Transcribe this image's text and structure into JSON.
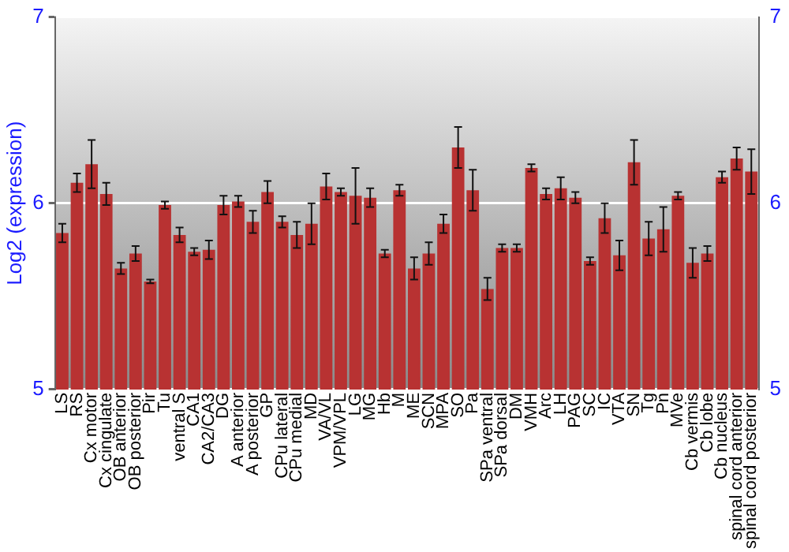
{
  "chart_data": {
    "type": "bar",
    "ylabel": "Log2 (expression)",
    "categories": [
      "LS",
      "RS",
      "Cx motor",
      "Cx cingulate",
      "OB anterior",
      "OB posterior",
      "Pir",
      "Tu",
      "ventral S",
      "CA1",
      "CA2/CA3",
      "DG",
      "A anterior",
      "A posterior",
      "GP",
      "CPu lateral",
      "CPu medial",
      "MD",
      "VA/VL",
      "VPM/VPL",
      "LG",
      "MG",
      "Hb",
      "M",
      "ME",
      "SCN",
      "MPA",
      "SO",
      "Pa",
      "SPa ventral",
      "SPa dorsal",
      "DM",
      "VMH",
      "Arc",
      "LH",
      "PAG",
      "SC",
      "IC",
      "VTA",
      "SN",
      "Tg",
      "Pn",
      "MVe",
      "Cb vermis",
      "Cb lobe",
      "Cb nucleus",
      "spinal cord anterior",
      "spinal cord posterior"
    ],
    "values": [
      5.84,
      6.11,
      6.21,
      6.05,
      5.65,
      5.73,
      5.58,
      5.99,
      5.83,
      5.74,
      5.75,
      5.99,
      6.01,
      5.9,
      6.06,
      5.9,
      5.83,
      5.89,
      6.09,
      6.06,
      6.04,
      6.03,
      5.73,
      6.07,
      5.65,
      5.73,
      5.89,
      6.3,
      6.07,
      5.54,
      5.76,
      5.76,
      6.19,
      6.05,
      6.08,
      6.03,
      5.69,
      5.92,
      5.72,
      6.22,
      5.81,
      5.86,
      6.04,
      5.68,
      5.73,
      6.14,
      6.24,
      6.17
    ],
    "errors": [
      0.05,
      0.05,
      0.13,
      0.06,
      0.03,
      0.04,
      0.01,
      0.02,
      0.04,
      0.02,
      0.05,
      0.05,
      0.03,
      0.06,
      0.06,
      0.03,
      0.07,
      0.11,
      0.07,
      0.02,
      0.15,
      0.05,
      0.02,
      0.03,
      0.06,
      0.06,
      0.05,
      0.11,
      0.11,
      0.06,
      0.02,
      0.02,
      0.02,
      0.03,
      0.06,
      0.03,
      0.02,
      0.08,
      0.08,
      0.12,
      0.09,
      0.12,
      0.02,
      0.08,
      0.04,
      0.03,
      0.06,
      0.12
    ],
    "color": "#b83232",
    "ylim": [
      5,
      7
    ],
    "yticks": [
      5,
      6,
      7
    ],
    "y2lim": [
      5,
      7
    ],
    "y2ticks": [
      5,
      6,
      7
    ],
    "grid": "y",
    "legend": false
  }
}
